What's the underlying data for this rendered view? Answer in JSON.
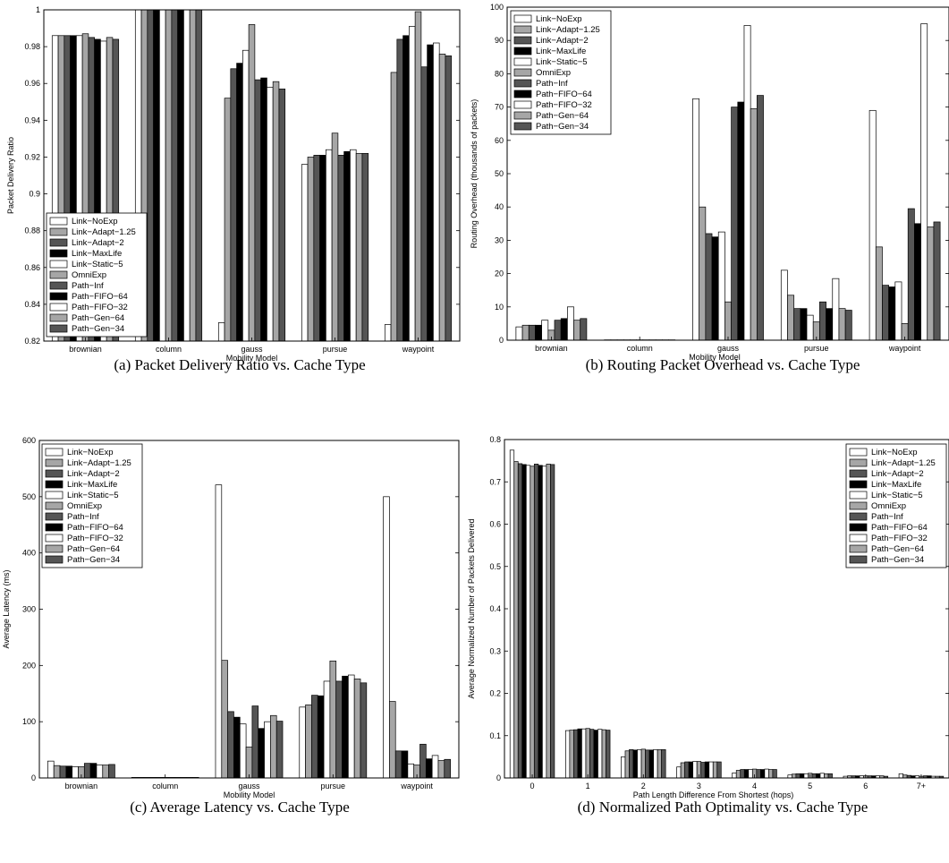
{
  "series_colors": [
    "#ffffff",
    "#a6a6a6",
    "#555555",
    "#000000",
    "#ffffff",
    "#a6a6a6",
    "#555555",
    "#000000",
    "#ffffff",
    "#a6a6a6",
    "#555555"
  ],
  "chart_data": [
    {
      "id": "a",
      "type": "bar",
      "caption": "(a) Packet Delivery Ratio vs. Cache Type",
      "xlabel": "Mobility Model",
      "ylabel": "Packet Delivery Ratio",
      "ylim": [
        0.82,
        1.0
      ],
      "yticks": [
        0.82,
        0.84,
        0.86,
        0.88,
        0.9,
        0.92,
        0.94,
        0.96,
        0.98,
        1
      ],
      "ytick_labels": [
        "0.82",
        "0.84",
        "0.86",
        "0.88",
        "0.9",
        "0.92",
        "0.94",
        "0.96",
        "0.98",
        "1"
      ],
      "legend_position": "bottom-left",
      "categories": [
        "brownian",
        "column",
        "gauss",
        "pursue",
        "waypoint"
      ],
      "series": [
        {
          "name": "Link−NoExp",
          "values": [
            0.986,
            1.0,
            0.83,
            0.916,
            0.829
          ]
        },
        {
          "name": "Link−Adapt−1.25",
          "values": [
            0.986,
            1.0,
            0.952,
            0.92,
            0.966
          ]
        },
        {
          "name": "Link−Adapt−2",
          "values": [
            0.986,
            1.0,
            0.968,
            0.921,
            0.984
          ]
        },
        {
          "name": "Link−MaxLife",
          "values": [
            0.986,
            1.0,
            0.971,
            0.921,
            0.986
          ]
        },
        {
          "name": "Link−Static−5",
          "values": [
            0.986,
            1.0,
            0.978,
            0.924,
            0.991
          ]
        },
        {
          "name": "OmniExp",
          "values": [
            0.987,
            1.0,
            0.992,
            0.933,
            0.999
          ]
        },
        {
          "name": "Path−Inf",
          "values": [
            0.985,
            1.0,
            0.962,
            0.921,
            0.969
          ]
        },
        {
          "name": "Path−FIFO−64",
          "values": [
            0.984,
            1.0,
            0.963,
            0.923,
            0.981
          ]
        },
        {
          "name": "Path−FIFO−32",
          "values": [
            0.983,
            1.0,
            0.958,
            0.924,
            0.982
          ]
        },
        {
          "name": "Path−Gen−64",
          "values": [
            0.985,
            1.0,
            0.961,
            0.922,
            0.976
          ]
        },
        {
          "name": "Path−Gen−34",
          "values": [
            0.984,
            1.0,
            0.957,
            0.922,
            0.975
          ]
        }
      ]
    },
    {
      "id": "b",
      "type": "bar",
      "caption": "(b) Routing Packet Overhead vs. Cache Type",
      "xlabel": "Mobility Model",
      "ylabel": "Routing Overhead (thousands of packets)",
      "ylim": [
        0,
        100
      ],
      "yticks": [
        0,
        10,
        20,
        30,
        40,
        50,
        60,
        70,
        80,
        90,
        100
      ],
      "ytick_labels": [
        "0",
        "10",
        "20",
        "30",
        "40",
        "50",
        "60",
        "70",
        "80",
        "90",
        "100"
      ],
      "legend_position": "top-left",
      "categories": [
        "brownian",
        "column",
        "gauss",
        "pursue",
        "waypoint"
      ],
      "series": [
        {
          "name": "Link−NoExp",
          "values": [
            4.0,
            0.1,
            72.5,
            21.0,
            69.0
          ]
        },
        {
          "name": "Link−Adapt−1.25",
          "values": [
            4.5,
            0.1,
            40.0,
            13.5,
            28.0
          ]
        },
        {
          "name": "Link−Adapt−2",
          "values": [
            4.5,
            0.1,
            32.0,
            9.5,
            16.5
          ]
        },
        {
          "name": "Link−MaxLife",
          "values": [
            4.5,
            0.1,
            31.0,
            9.5,
            16.0
          ]
        },
        {
          "name": "Link−Static−5",
          "values": [
            6.0,
            0.1,
            32.5,
            7.5,
            17.5
          ]
        },
        {
          "name": "OmniExp",
          "values": [
            3.0,
            0.1,
            11.5,
            5.5,
            5.0
          ]
        },
        {
          "name": "Path−Inf",
          "values": [
            6.0,
            0.1,
            70.0,
            11.5,
            39.5
          ]
        },
        {
          "name": "Path−FIFO−64",
          "values": [
            6.5,
            0.1,
            71.5,
            9.5,
            35.0
          ]
        },
        {
          "name": "Path−FIFO−32",
          "values": [
            10.0,
            0.1,
            94.5,
            18.5,
            95.0
          ]
        },
        {
          "name": "Path−Gen−64",
          "values": [
            6.0,
            0.1,
            69.5,
            9.5,
            34.0
          ]
        },
        {
          "name": "Path−Gen−34",
          "values": [
            6.5,
            0.1,
            73.5,
            9.0,
            35.5
          ]
        }
      ]
    },
    {
      "id": "c",
      "type": "bar",
      "caption": "(c) Average Latency vs. Cache Type",
      "xlabel": "Mobility Model",
      "ylabel": "Average Latency (ms)",
      "ylim": [
        0,
        600
      ],
      "yticks": [
        0,
        100,
        200,
        300,
        400,
        500,
        600
      ],
      "ytick_labels": [
        "0",
        "100",
        "200",
        "300",
        "400",
        "500",
        "600"
      ],
      "legend_position": "top-left",
      "categories": [
        "brownian",
        "column",
        "gauss",
        "pursue",
        "waypoint"
      ],
      "series": [
        {
          "name": "Link−NoExp",
          "values": [
            30,
            1,
            521,
            126,
            500
          ]
        },
        {
          "name": "Link−Adapt−1.25",
          "values": [
            22,
            1,
            209,
            130,
            136
          ]
        },
        {
          "name": "Link−Adapt−2",
          "values": [
            21,
            1,
            118,
            147,
            48
          ]
        },
        {
          "name": "Link−MaxLife",
          "values": [
            21,
            1,
            108,
            146,
            48
          ]
        },
        {
          "name": "Link−Static−5",
          "values": [
            20,
            1,
            96,
            172,
            25
          ]
        },
        {
          "name": "OmniExp",
          "values": [
            20,
            1,
            55,
            208,
            23
          ]
        },
        {
          "name": "Path−Inf",
          "values": [
            26,
            1,
            128,
            172,
            60
          ]
        },
        {
          "name": "Path−FIFO−64",
          "values": [
            26,
            1,
            88,
            181,
            34
          ]
        },
        {
          "name": "Path−FIFO−32",
          "values": [
            23,
            1,
            100,
            183,
            40
          ]
        },
        {
          "name": "Path−Gen−64",
          "values": [
            23,
            1,
            111,
            176,
            31
          ]
        },
        {
          "name": "Path−Gen−34",
          "values": [
            24,
            1,
            101,
            169,
            33
          ]
        }
      ]
    },
    {
      "id": "d",
      "type": "bar",
      "caption": "(d) Normalized Path Optimality vs. Cache Type",
      "xlabel": "Path Length Difference From Shortest (hops)",
      "ylabel": "Average Normalized Number of Packets Delivered",
      "ylim": [
        0,
        0.8
      ],
      "yticks": [
        0,
        0.1,
        0.2,
        0.3,
        0.4,
        0.5,
        0.6,
        0.7,
        0.8
      ],
      "ytick_labels": [
        "0",
        "0.1",
        "0.2",
        "0.3",
        "0.4",
        "0.5",
        "0.6",
        "0.7",
        "0.8"
      ],
      "legend_position": "top-right",
      "categories": [
        "0",
        "1",
        "2",
        "3",
        "4",
        "5",
        "6",
        "7+"
      ],
      "series": [
        {
          "name": "Link−NoExp",
          "values": [
            0.775,
            0.112,
            0.05,
            0.026,
            0.012,
            0.007,
            0.004,
            0.01
          ]
        },
        {
          "name": "Link−Adapt−1.25",
          "values": [
            0.748,
            0.113,
            0.064,
            0.036,
            0.018,
            0.009,
            0.005,
            0.007
          ]
        },
        {
          "name": "Link−Adapt−2",
          "values": [
            0.743,
            0.114,
            0.067,
            0.038,
            0.02,
            0.01,
            0.005,
            0.006
          ]
        },
        {
          "name": "Link−MaxLife",
          "values": [
            0.741,
            0.116,
            0.066,
            0.038,
            0.02,
            0.01,
            0.005,
            0.005
          ]
        },
        {
          "name": "Link−Static−5",
          "values": [
            0.739,
            0.116,
            0.067,
            0.039,
            0.02,
            0.01,
            0.005,
            0.005
          ]
        },
        {
          "name": "OmniExp",
          "values": [
            0.737,
            0.117,
            0.068,
            0.039,
            0.021,
            0.011,
            0.005,
            0.004
          ]
        },
        {
          "name": "Path−Inf",
          "values": [
            0.742,
            0.115,
            0.066,
            0.037,
            0.02,
            0.01,
            0.005,
            0.005
          ]
        },
        {
          "name": "Path−FIFO−64",
          "values": [
            0.739,
            0.113,
            0.066,
            0.038,
            0.02,
            0.01,
            0.005,
            0.005
          ]
        },
        {
          "name": "Path−FIFO−32",
          "values": [
            0.737,
            0.115,
            0.067,
            0.038,
            0.021,
            0.011,
            0.005,
            0.004
          ]
        },
        {
          "name": "Path−Gen−64",
          "values": [
            0.742,
            0.114,
            0.067,
            0.038,
            0.02,
            0.01,
            0.005,
            0.004
          ]
        },
        {
          "name": "Path−Gen−34",
          "values": [
            0.741,
            0.113,
            0.067,
            0.038,
            0.02,
            0.01,
            0.004,
            0.004
          ]
        }
      ]
    }
  ]
}
